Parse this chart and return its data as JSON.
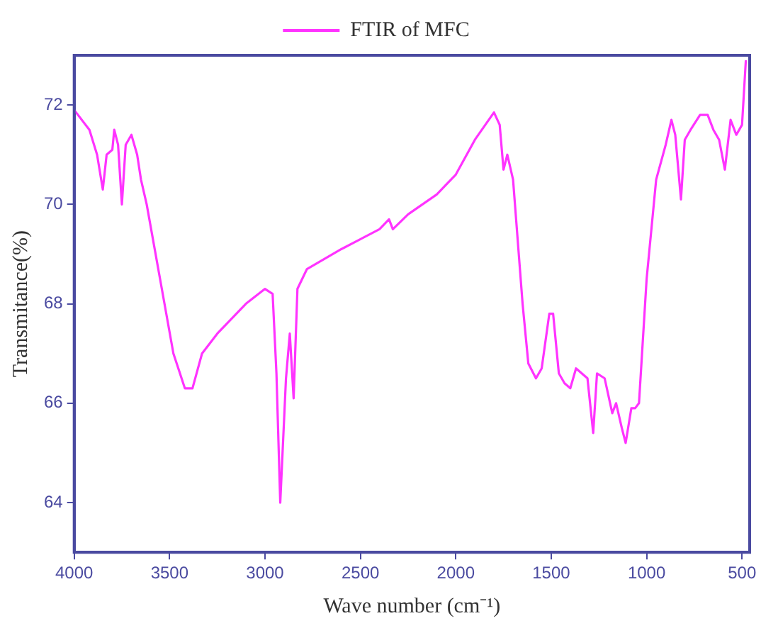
{
  "chart_data": {
    "type": "line",
    "xlabel": "Wave number (cm⁻¹)",
    "ylabel": "Transmitance(%)",
    "xlim": [
      4000,
      460
    ],
    "ylim": [
      63,
      73
    ],
    "xticks": [
      4000,
      3500,
      3000,
      2500,
      2000,
      1500,
      1000,
      500
    ],
    "yticks": [
      64,
      66,
      68,
      70,
      72
    ],
    "grid": false,
    "legend": "top",
    "marker": "none",
    "line_style": "solid",
    "x": [
      4000,
      3920,
      3880,
      3850,
      3830,
      3800,
      3790,
      3770,
      3750,
      3730,
      3700,
      3670,
      3650,
      3620,
      3550,
      3480,
      3420,
      3380,
      3330,
      3250,
      3100,
      3000,
      2960,
      2940,
      2920,
      2890,
      2870,
      2850,
      2830,
      2780,
      2600,
      2400,
      2350,
      2330,
      2250,
      2100,
      2000,
      1900,
      1800,
      1770,
      1750,
      1730,
      1700,
      1650,
      1620,
      1580,
      1550,
      1510,
      1490,
      1460,
      1430,
      1400,
      1370,
      1340,
      1310,
      1280,
      1260,
      1220,
      1180,
      1160,
      1130,
      1110,
      1080,
      1060,
      1040,
      1000,
      950,
      900,
      870,
      850,
      820,
      800,
      770,
      720,
      680,
      650,
      620,
      590,
      560,
      530,
      500,
      480
    ],
    "series": [
      {
        "name": "FTIR of MFC",
        "color": "#ff33ff",
        "values": [
          71.9,
          71.5,
          71.0,
          70.3,
          71.0,
          71.1,
          71.5,
          71.2,
          70.0,
          71.2,
          71.4,
          71.0,
          70.5,
          70.0,
          68.5,
          67.0,
          66.3,
          66.3,
          67.0,
          67.4,
          68.0,
          68.3,
          68.2,
          66.6,
          64.0,
          66.5,
          67.4,
          66.1,
          68.3,
          68.7,
          69.1,
          69.5,
          69.7,
          69.5,
          69.8,
          70.2,
          70.6,
          71.3,
          71.85,
          71.6,
          70.7,
          71.0,
          70.5,
          68.0,
          66.8,
          66.5,
          66.7,
          67.8,
          67.8,
          66.6,
          66.4,
          66.3,
          66.7,
          66.6,
          66.5,
          65.4,
          66.6,
          66.5,
          65.8,
          66.0,
          65.5,
          65.2,
          65.9,
          65.9,
          66.0,
          68.5,
          70.5,
          71.2,
          71.7,
          71.4,
          70.1,
          71.3,
          71.5,
          71.8,
          71.8,
          71.5,
          71.3,
          70.7,
          71.7,
          71.4,
          71.6,
          72.9
        ]
      }
    ]
  }
}
